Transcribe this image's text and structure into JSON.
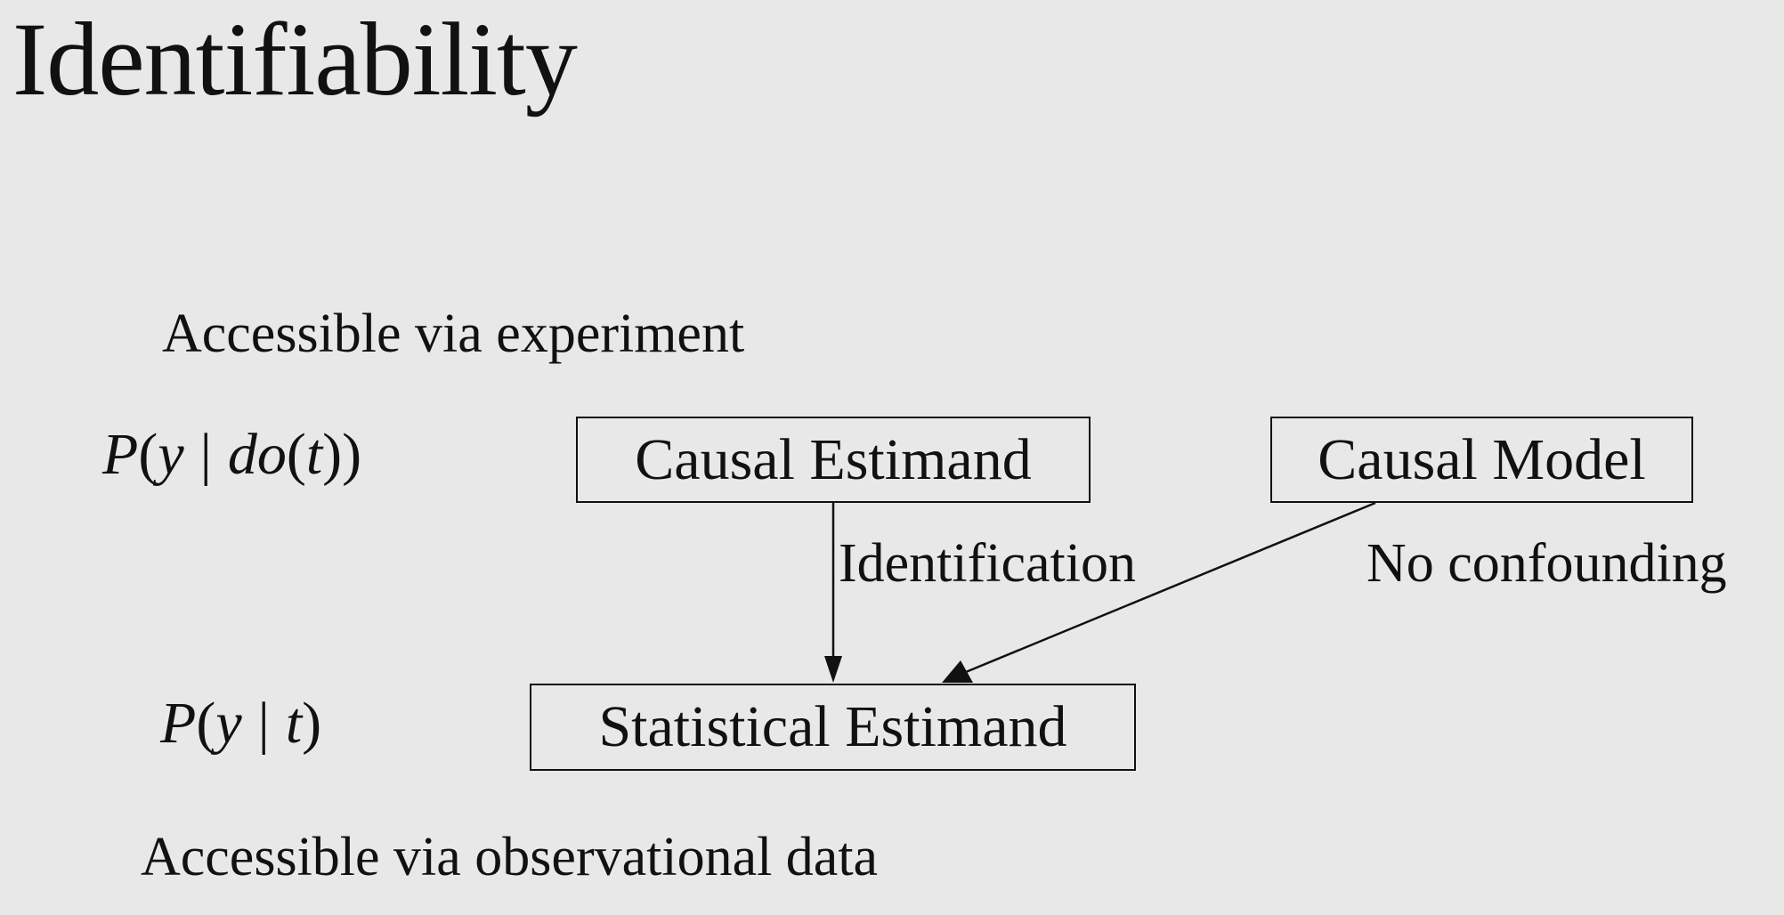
{
  "title": "Identifiability",
  "top_caption": "Accessible via experiment",
  "bottom_caption": "Accessible via observational data",
  "interventional_expr": {
    "P": "P",
    "open": "(",
    "y": "y",
    "bar": "|",
    "do": "do",
    "open2": "(",
    "t": "t",
    "close": "))"
  },
  "observational_expr": {
    "P": "P",
    "open": "(",
    "y": "y",
    "bar": "|",
    "t": "t",
    "close": ")"
  },
  "nodes": {
    "causal_estimand": "Causal Estimand",
    "causal_model": "Causal Model",
    "statistical_estimand": "Statistical Estimand"
  },
  "edges": {
    "identification": "Identification",
    "no_confounding": "No confounding"
  }
}
